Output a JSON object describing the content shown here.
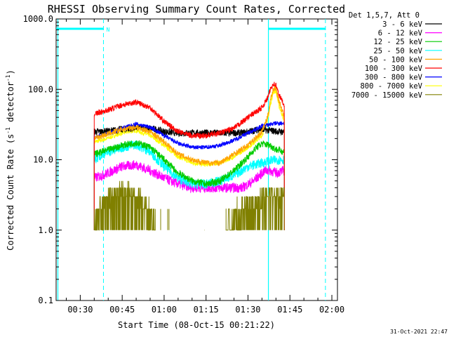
{
  "chart_data": {
    "type": "line",
    "title": "RHESSI Observing Summary Count Rates, Corrected",
    "xlabel": "Start Time (08-Oct-15 00:21:22)",
    "ylabel_main": "Corrected Count Rate (s",
    "ylabel_sup1": "-1",
    "ylabel_mid": " detector",
    "ylabel_sup2": "-1",
    "ylabel_end": ")",
    "y_scale": "log",
    "ylim": [
      0.1,
      1000
    ],
    "xlim_minutes": [
      21.37,
      122
    ],
    "x_ticks": [
      {
        "m": 30,
        "label": "00:30"
      },
      {
        "m": 45,
        "label": "00:45"
      },
      {
        "m": 60,
        "label": "01:00"
      },
      {
        "m": 75,
        "label": "01:15"
      },
      {
        "m": 90,
        "label": "01:30"
      },
      {
        "m": 105,
        "label": "01:45"
      },
      {
        "m": 120,
        "label": "02:00"
      }
    ],
    "y_ticks": [
      {
        "v": 0.1,
        "label": "0.1"
      },
      {
        "v": 1,
        "label": "1.0"
      },
      {
        "v": 10,
        "label": "10.0"
      },
      {
        "v": 100,
        "label": "100.0"
      },
      {
        "v": 1000,
        "label": "1000.0"
      }
    ],
    "legend_title": "Det 1,5,7, Att 0",
    "legend_position": "right",
    "series": [
      {
        "name": "3 - 6 keV",
        "color": "#000000",
        "x": [
          35,
          38,
          45,
          52,
          57,
          60,
          65,
          70,
          80,
          88,
          92,
          94,
          98,
          101,
          103
        ],
        "y": [
          25,
          25,
          27,
          29,
          27,
          25,
          24,
          24,
          24,
          24,
          26,
          27,
          26,
          25,
          25
        ],
        "noise": 0.05
      },
      {
        "name": "6 - 12 keV",
        "color": "#ff00ff",
        "x": [
          35,
          38,
          45,
          50,
          55,
          60,
          65,
          70,
          80,
          88,
          92,
          96,
          98,
          100,
          103
        ],
        "y": [
          5.5,
          6,
          8,
          8.5,
          7,
          5.5,
          4.5,
          4,
          4,
          4,
          5,
          7,
          7,
          6.5,
          7
        ],
        "noise": 0.07
      },
      {
        "name": "12 - 25 keV",
        "color": "#00cc00",
        "x": [
          35,
          38,
          45,
          50,
          55,
          60,
          65,
          70,
          75,
          80,
          85,
          90,
          93,
          95,
          98,
          100,
          103
        ],
        "y": [
          12,
          13,
          16,
          17.5,
          15,
          10,
          6.5,
          5,
          4.5,
          5,
          7,
          11,
          15,
          17,
          16,
          14,
          13
        ],
        "noise": 0.05
      },
      {
        "name": "25 - 50 keV",
        "color": "#00ffff",
        "x": [
          35,
          38,
          45,
          50,
          55,
          60,
          65,
          70,
          75,
          80,
          85,
          90,
          95,
          100,
          103
        ],
        "y": [
          10,
          12,
          15,
          16.5,
          13,
          8,
          5.5,
          4.5,
          4.5,
          5,
          6,
          8,
          9,
          10,
          10
        ],
        "noise": 0.07
      },
      {
        "name": "50 - 100 keV",
        "color": "#ffa500",
        "x": [
          35,
          38,
          45,
          50,
          55,
          60,
          65,
          70,
          75,
          80,
          85,
          90,
          95,
          97,
          98,
          99,
          100,
          101,
          103
        ],
        "y": [
          20,
          22,
          27,
          29,
          25,
          18,
          12,
          10,
          9,
          9,
          12,
          16,
          25,
          40,
          70,
          100,
          105,
          70,
          40
        ],
        "noise": 0.04
      },
      {
        "name": "100 - 300 keV",
        "color": "#ff0000",
        "x": [
          35,
          38,
          45,
          50,
          55,
          60,
          65,
          70,
          75,
          80,
          85,
          90,
          95,
          97,
          98,
          99,
          100,
          101,
          103
        ],
        "y": [
          45,
          48,
          60,
          66,
          55,
          35,
          25,
          22,
          22,
          24,
          28,
          40,
          55,
          75,
          100,
          120,
          115,
          85,
          60
        ],
        "noise": 0.04
      },
      {
        "name": "300 - 800 keV",
        "color": "#0000ff",
        "x": [
          35,
          38,
          45,
          50,
          55,
          60,
          65,
          70,
          75,
          80,
          85,
          90,
          95,
          100,
          103
        ],
        "y": [
          21,
          22,
          28,
          32,
          29,
          22,
          17,
          15,
          15,
          16,
          19,
          24,
          30,
          33,
          33
        ],
        "noise": 0.03
      },
      {
        "name": "800 - 7000 keV",
        "color": "#ffff00",
        "x": [
          35,
          38,
          45,
          50,
          55,
          60,
          65,
          70,
          75,
          80,
          85,
          90,
          95,
          97,
          98,
          99,
          100,
          101,
          103
        ],
        "y": [
          18,
          19,
          24,
          26,
          22,
          16,
          11,
          9,
          8.5,
          9,
          11,
          15,
          22,
          35,
          60,
          90,
          95,
          60,
          35
        ],
        "noise": 0.03
      },
      {
        "name": "7000 - 15000 keV",
        "color": "#808000",
        "x": [],
        "y": []
      }
    ],
    "marker_label": "N",
    "timestamp": "31-Oct-2021 22:47"
  }
}
